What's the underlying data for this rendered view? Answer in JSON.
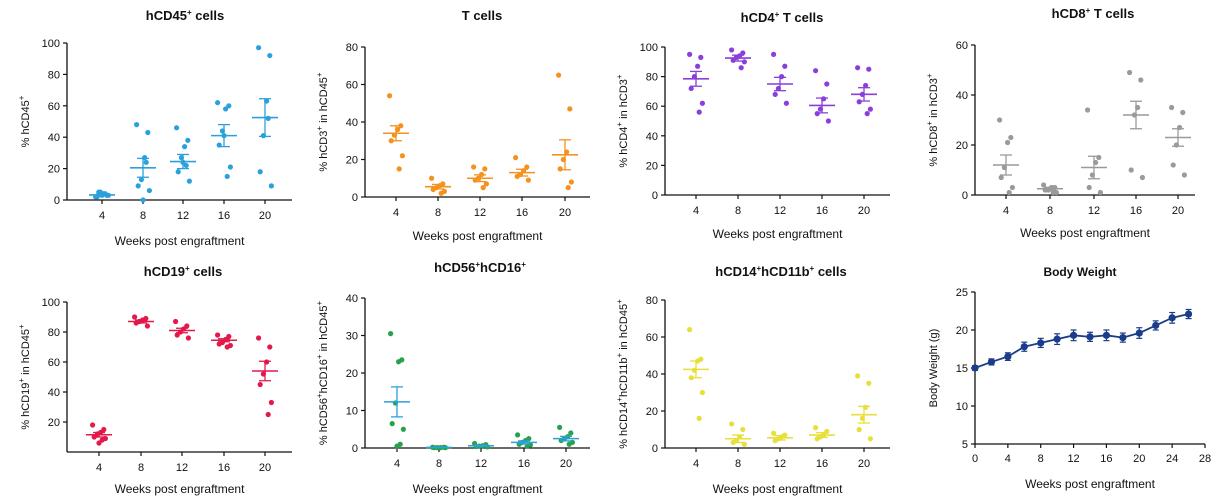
{
  "figure": {
    "x_axis_label": "Weeks post engraftment"
  },
  "chart_data": [
    {
      "id": "hcd45",
      "type": "scatter",
      "color": "#2aa1dc",
      "title": {
        "base": "hCD45",
        "sup": "+",
        "rest": " cells"
      },
      "ylabel": {
        "parts": [
          [
            "% hCD45",
            ""
          ],
          [
            "+",
            "sup"
          ]
        ]
      },
      "ylim": [
        0,
        100
      ],
      "yticks": [
        0,
        20,
        40,
        60,
        80,
        100
      ],
      "categories": [
        "4",
        "8",
        "12",
        "16",
        "20"
      ],
      "points": [
        [
          2,
          3,
          4,
          5,
          2,
          3,
          4,
          3,
          5
        ],
        [
          48,
          43,
          27,
          13,
          9,
          6,
          24,
          0
        ],
        [
          46,
          38,
          34,
          27,
          18,
          12,
          22,
          24
        ],
        [
          62,
          60,
          58,
          44,
          35,
          21,
          15,
          41
        ],
        [
          97,
          92,
          63,
          41,
          18,
          9,
          52
        ]
      ],
      "means": [
        3.2,
        20.5,
        24.5,
        41.0,
        52.5
      ],
      "sems": [
        0.5,
        6.0,
        4.5,
        7.0,
        12.0
      ]
    },
    {
      "id": "tcells",
      "type": "scatter",
      "color": "#f4921f",
      "title": {
        "base": "T cells",
        "sup": "",
        "rest": ""
      },
      "ylabel": {
        "parts": [
          [
            "% hCD3",
            ""
          ],
          [
            "+",
            "sup"
          ],
          [
            " in hCD45",
            ""
          ],
          [
            "+",
            "sup"
          ]
        ]
      },
      "ylim": [
        0,
        80
      ],
      "yticks": [
        0,
        20,
        40,
        60,
        80
      ],
      "categories": [
        "4",
        "8",
        "12",
        "16",
        "20"
      ],
      "points": [
        [
          54,
          38,
          36,
          33,
          30,
          22,
          15
        ],
        [
          10,
          7,
          6,
          5,
          4,
          3,
          2
        ],
        [
          16,
          15,
          12,
          10,
          9,
          7,
          5
        ],
        [
          21,
          16,
          14,
          12,
          11,
          9
        ],
        [
          65,
          47,
          24,
          20,
          15,
          8,
          5
        ]
      ],
      "means": [
        34.0,
        5.5,
        10.0,
        13.0,
        22.5
      ],
      "sems": [
        4.0,
        1.2,
        1.8,
        1.8,
        8.0
      ]
    },
    {
      "id": "hcd4",
      "type": "scatter",
      "color": "#8a3fdb",
      "title": {
        "base": "hCD4",
        "sup": "+",
        "rest": " T cells"
      },
      "ylabel": {
        "parts": [
          [
            "% hCD4",
            ""
          ],
          [
            "+",
            "sup"
          ],
          [
            " in hCD3",
            ""
          ],
          [
            "+",
            "sup"
          ]
        ]
      },
      "ylim": [
        0,
        100
      ],
      "yticks": [
        0,
        20,
        40,
        60,
        80,
        100
      ],
      "categories": [
        "4",
        "8",
        "12",
        "16",
        "20"
      ],
      "points": [
        [
          95,
          93,
          87,
          80,
          72,
          62,
          56
        ],
        [
          98,
          96,
          94,
          93,
          91,
          90,
          86
        ],
        [
          95,
          87,
          80,
          72,
          68,
          62
        ],
        [
          84,
          75,
          65,
          58,
          55,
          50
        ],
        [
          86,
          85,
          74,
          68,
          63,
          58,
          55
        ]
      ],
      "means": [
        78.5,
        92.5,
        75.0,
        60.5,
        68.0
      ],
      "sems": [
        5.0,
        2.0,
        4.5,
        5.0,
        4.5
      ]
    },
    {
      "id": "hcd8",
      "type": "scatter",
      "color": "#9a9a9a",
      "title": {
        "base": "hCD8",
        "sup": "+",
        "rest": " T cells"
      },
      "ylabel": {
        "parts": [
          [
            "% hCD8",
            ""
          ],
          [
            "+",
            "sup"
          ],
          [
            " in hCD3",
            ""
          ],
          [
            "+",
            "sup"
          ]
        ]
      },
      "ylim": [
        0,
        60
      ],
      "yticks": [
        0,
        20,
        40,
        60
      ],
      "categories": [
        "4",
        "8",
        "12",
        "16",
        "20"
      ],
      "points": [
        [
          30,
          23,
          21,
          11,
          7,
          3,
          1
        ],
        [
          4,
          3,
          3,
          2,
          2,
          1,
          1
        ],
        [
          34,
          15,
          13,
          8,
          3,
          1
        ],
        [
          49,
          46,
          35,
          32,
          10,
          7
        ],
        [
          35,
          33,
          27,
          20,
          12,
          8
        ]
      ],
      "means": [
        12.0,
        2.5,
        11.0,
        32.0,
        23.0
      ],
      "sems": [
        4.0,
        0.6,
        4.5,
        5.5,
        3.5
      ]
    },
    {
      "id": "hcd19",
      "type": "scatter",
      "color": "#e3194b",
      "title": {
        "base": "hCD19",
        "sup": "+",
        "rest": " cells"
      },
      "ylabel": {
        "parts": [
          [
            "% hCD19",
            ""
          ],
          [
            "+",
            "sup"
          ],
          [
            " in hCD45",
            ""
          ],
          [
            "+",
            "sup"
          ]
        ]
      },
      "ylim": [
        0,
        100
      ],
      "yticks": [
        20,
        40,
        60,
        80,
        100
      ],
      "categories": [
        "4",
        "8",
        "12",
        "16",
        "20"
      ],
      "points": [
        [
          18,
          15,
          13,
          12,
          10,
          9,
          8,
          6
        ],
        [
          90,
          89,
          88,
          87,
          86,
          84
        ],
        [
          87,
          84,
          82,
          80,
          78,
          76
        ],
        [
          78,
          77,
          75,
          73,
          72,
          71,
          70
        ],
        [
          76,
          70,
          60,
          52,
          45,
          33,
          25
        ]
      ],
      "means": [
        11.5,
        87.0,
        81.0,
        74.5,
        54.0
      ],
      "sems": [
        1.5,
        1.0,
        1.5,
        1.0,
        6.5
      ]
    },
    {
      "id": "hcd56",
      "type": "scatter",
      "color": "#27a24a",
      "mean_color": "#2aa1dc",
      "title": {
        "base": "hCD56",
        "sup": "+",
        "rest": "hCD16",
        "sup2": "+"
      },
      "ylabel": {
        "parts": [
          [
            "% hCD56",
            ""
          ],
          [
            "+",
            "sup"
          ],
          [
            "hCD16",
            ""
          ],
          [
            "+",
            "sup"
          ],
          [
            " in hCD45",
            ""
          ],
          [
            "+",
            "sup"
          ]
        ]
      },
      "ylim": [
        0,
        40
      ],
      "yticks": [
        0,
        10,
        20,
        30,
        40
      ],
      "categories": [
        "4",
        "8",
        "12",
        "16",
        "20"
      ],
      "points": [
        [
          30.5,
          23.5,
          23,
          12,
          6.5,
          5,
          1,
          0.5
        ],
        [
          0.2,
          0.2,
          0.1,
          0.1,
          0.1,
          0.1
        ],
        [
          1.2,
          0.9,
          0.6,
          0.5,
          0.4,
          0.3
        ],
        [
          3.5,
          2.5,
          2,
          1.5,
          1,
          0.8,
          0.5
        ],
        [
          5.5,
          4,
          3,
          2.5,
          2,
          1.5,
          1
        ]
      ],
      "means": [
        12.3,
        0.15,
        0.6,
        1.5,
        2.5
      ],
      "sems": [
        4.0,
        0.05,
        0.2,
        0.4,
        0.6
      ]
    },
    {
      "id": "hcd14",
      "type": "scatter",
      "color": "#e8df3a",
      "mean_color": "#e8df3a",
      "title": {
        "base": "hCD14",
        "sup": "+",
        "rest": "hCD11b",
        "sup2": "+",
        "rest2": " cells"
      },
      "ylabel": {
        "parts": [
          [
            "% hCD14",
            ""
          ],
          [
            "+",
            "sup"
          ],
          [
            "hCD11b",
            ""
          ],
          [
            "+",
            "sup"
          ],
          [
            " in hCD45",
            ""
          ],
          [
            "+",
            "sup"
          ]
        ]
      },
      "ylim": [
        0,
        80
      ],
      "yticks": [
        0,
        20,
        40,
        60,
        80
      ],
      "categories": [
        "4",
        "8",
        "12",
        "16",
        "20"
      ],
      "points": [
        [
          64,
          48,
          47,
          42,
          38,
          30,
          16
        ],
        [
          13,
          10,
          6,
          4,
          3,
          2
        ],
        [
          8,
          7,
          6,
          5,
          4
        ],
        [
          11,
          9,
          7,
          6,
          5
        ],
        [
          39,
          35,
          22,
          16,
          10,
          5
        ]
      ],
      "means": [
        42.5,
        5.0,
        5.5,
        7.0,
        18.0
      ],
      "sems": [
        4.5,
        2.0,
        1.2,
        1.3,
        4.5
      ]
    },
    {
      "id": "bodyweight",
      "type": "line",
      "color": "#1a3c8a",
      "title": {
        "base": "Body Weight",
        "sup": "",
        "rest": ""
      },
      "ylabel": {
        "parts": [
          [
            "Body Weight (g)",
            ""
          ]
        ]
      },
      "xlim": [
        0,
        28
      ],
      "ylim": [
        5,
        25
      ],
      "xticks": [
        0,
        4,
        8,
        12,
        16,
        20,
        24,
        28
      ],
      "yticks": [
        5,
        10,
        15,
        20,
        25
      ],
      "x": [
        0,
        2,
        4,
        6,
        8,
        10,
        12,
        14,
        16,
        18,
        20,
        22,
        24,
        26
      ],
      "y": [
        15.0,
        15.8,
        16.5,
        17.8,
        18.3,
        18.8,
        19.3,
        19.1,
        19.3,
        19.0,
        19.6,
        20.6,
        21.6,
        22.1
      ],
      "err": [
        0.3,
        0.4,
        0.5,
        0.6,
        0.6,
        0.7,
        0.7,
        0.6,
        0.7,
        0.6,
        0.7,
        0.6,
        0.7,
        0.6
      ]
    }
  ]
}
